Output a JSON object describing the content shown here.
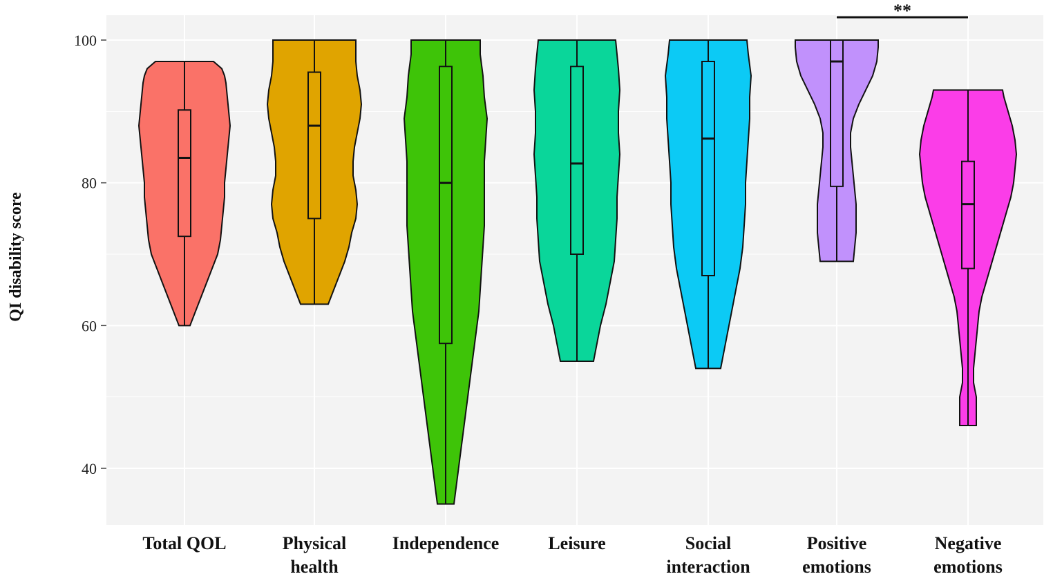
{
  "chart_data": {
    "type": "violin",
    "ylabel": "QI disability score",
    "xlabel": "",
    "ylim": [
      31,
      103
    ],
    "yticks": [
      40,
      60,
      80,
      100
    ],
    "grid": true,
    "categories": [
      {
        "label": "Total QOL",
        "lines": [
          "Total QOL"
        ],
        "color": "#fa7268",
        "min": 60,
        "q1": 72.5,
        "median": 83.5,
        "q3": 90.2,
        "max": 97,
        "profile": [
          [
            60,
            0.4
          ],
          [
            62,
            0.8
          ],
          [
            64,
            1.2
          ],
          [
            66,
            1.6
          ],
          [
            68,
            2.0
          ],
          [
            70,
            2.4
          ],
          [
            72,
            2.6
          ],
          [
            74,
            2.7
          ],
          [
            76,
            2.8
          ],
          [
            78,
            2.9
          ],
          [
            80,
            2.9
          ],
          [
            82,
            3.0
          ],
          [
            84,
            3.1
          ],
          [
            86,
            3.2
          ],
          [
            88,
            3.3
          ],
          [
            90,
            3.2
          ],
          [
            92,
            3.1
          ],
          [
            94,
            3.0
          ],
          [
            95,
            2.9
          ],
          [
            96,
            2.7
          ],
          [
            97,
            2.1
          ]
        ]
      },
      {
        "label": "Physical health",
        "lines": [
          "Physical",
          "health"
        ],
        "color": "#e0a400",
        "min": 63,
        "q1": 75,
        "median": 88,
        "q3": 95.5,
        "max": 100,
        "profile": [
          [
            63,
            1.0
          ],
          [
            65,
            1.4
          ],
          [
            67,
            1.8
          ],
          [
            69,
            2.2
          ],
          [
            71,
            2.5
          ],
          [
            73,
            2.7
          ],
          [
            75,
            3.0
          ],
          [
            77,
            3.1
          ],
          [
            79,
            3.0
          ],
          [
            81,
            2.8
          ],
          [
            83,
            2.8
          ],
          [
            85,
            2.9
          ],
          [
            87,
            3.1
          ],
          [
            89,
            3.3
          ],
          [
            91,
            3.4
          ],
          [
            93,
            3.3
          ],
          [
            95,
            3.1
          ],
          [
            97,
            3.0
          ],
          [
            99,
            3.0
          ],
          [
            100,
            3.0
          ]
        ]
      },
      {
        "label": "Independence",
        "lines": [
          "Independence"
        ],
        "color": "#3ec408",
        "min": 35,
        "q1": 57.5,
        "median": 80,
        "q3": 96.3,
        "max": 100,
        "profile": [
          [
            35,
            0.6
          ],
          [
            38,
            0.8
          ],
          [
            41,
            1.0
          ],
          [
            44,
            1.2
          ],
          [
            47,
            1.4
          ],
          [
            50,
            1.6
          ],
          [
            53,
            1.8
          ],
          [
            56,
            2.0
          ],
          [
            59,
            2.2
          ],
          [
            62,
            2.4
          ],
          [
            65,
            2.5
          ],
          [
            68,
            2.6
          ],
          [
            71,
            2.7
          ],
          [
            74,
            2.8
          ],
          [
            77,
            2.8
          ],
          [
            80,
            2.8
          ],
          [
            83,
            2.8
          ],
          [
            86,
            2.9
          ],
          [
            89,
            3.0
          ],
          [
            92,
            2.8
          ],
          [
            95,
            2.7
          ],
          [
            98,
            2.5
          ],
          [
            100,
            2.5
          ]
        ]
      },
      {
        "label": "Leisure",
        "lines": [
          "Leisure"
        ],
        "color": "#0ad69a",
        "min": 55,
        "q1": 70,
        "median": 82.7,
        "q3": 96.3,
        "max": 100,
        "profile": [
          [
            55,
            1.2
          ],
          [
            57,
            1.4
          ],
          [
            60,
            1.7
          ],
          [
            63,
            2.1
          ],
          [
            66,
            2.4
          ],
          [
            69,
            2.7
          ],
          [
            72,
            2.8
          ],
          [
            75,
            2.9
          ],
          [
            78,
            2.9
          ],
          [
            81,
            3.0
          ],
          [
            84,
            3.1
          ],
          [
            87,
            3.0
          ],
          [
            90,
            3.0
          ],
          [
            93,
            3.1
          ],
          [
            96,
            3.0
          ],
          [
            98,
            2.9
          ],
          [
            100,
            2.8
          ]
        ]
      },
      {
        "label": "Social interaction",
        "lines": [
          "Social",
          "interaction"
        ],
        "color": "#0ccaf5",
        "min": 54,
        "q1": 67,
        "median": 86.2,
        "q3": 97,
        "max": 100,
        "profile": [
          [
            54,
            0.9
          ],
          [
            56,
            1.1
          ],
          [
            59,
            1.4
          ],
          [
            62,
            1.7
          ],
          [
            65,
            2.0
          ],
          [
            68,
            2.3
          ],
          [
            71,
            2.5
          ],
          [
            74,
            2.6
          ],
          [
            77,
            2.7
          ],
          [
            80,
            2.7
          ],
          [
            83,
            2.8
          ],
          [
            86,
            2.9
          ],
          [
            89,
            3.0
          ],
          [
            92,
            3.0
          ],
          [
            95,
            3.1
          ],
          [
            98,
            2.9
          ],
          [
            100,
            2.8
          ]
        ]
      },
      {
        "label": "Positive emotions",
        "lines": [
          "Positive",
          "emotions"
        ],
        "color": "#c191fc",
        "min": 69,
        "q1": 79.5,
        "median": 97,
        "q3": 100,
        "max": 100,
        "profile": [
          [
            69,
            1.2
          ],
          [
            71,
            1.3
          ],
          [
            73,
            1.4
          ],
          [
            75,
            1.4
          ],
          [
            77,
            1.4
          ],
          [
            79,
            1.3
          ],
          [
            81,
            1.2
          ],
          [
            83,
            1.1
          ],
          [
            85,
            1.0
          ],
          [
            87,
            1.0
          ],
          [
            89,
            1.2
          ],
          [
            91,
            1.6
          ],
          [
            93,
            2.1
          ],
          [
            95,
            2.6
          ],
          [
            97,
            2.9
          ],
          [
            99,
            3.0
          ],
          [
            100,
            3.0
          ]
        ]
      },
      {
        "label": "Negative emotions",
        "lines": [
          "Negative",
          "emotions"
        ],
        "color": "#fb3de8",
        "min": 46,
        "q1": 68,
        "median": 77,
        "q3": 83,
        "max": 93,
        "profile": [
          [
            46,
            0.6
          ],
          [
            48,
            0.6
          ],
          [
            50,
            0.6
          ],
          [
            52,
            0.4
          ],
          [
            54,
            0.4
          ],
          [
            56,
            0.5
          ],
          [
            58,
            0.6
          ],
          [
            60,
            0.7
          ],
          [
            62,
            0.8
          ],
          [
            64,
            1.0
          ],
          [
            66,
            1.3
          ],
          [
            68,
            1.6
          ],
          [
            70,
            1.9
          ],
          [
            72,
            2.2
          ],
          [
            74,
            2.5
          ],
          [
            76,
            2.8
          ],
          [
            78,
            3.1
          ],
          [
            80,
            3.3
          ],
          [
            82,
            3.4
          ],
          [
            84,
            3.5
          ],
          [
            86,
            3.4
          ],
          [
            88,
            3.2
          ],
          [
            90,
            2.9
          ],
          [
            92,
            2.6
          ],
          [
            93,
            2.5
          ]
        ]
      }
    ],
    "annotations": [
      {
        "text": "**",
        "from": "Positive emotions",
        "to": "Negative emotions"
      }
    ]
  }
}
